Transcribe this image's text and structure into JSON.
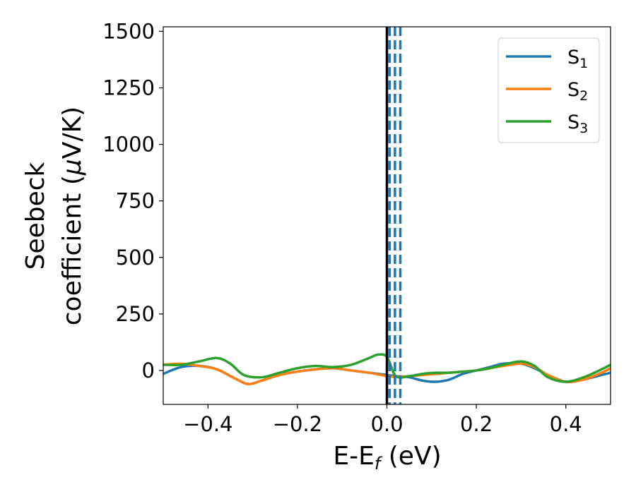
{
  "chart_data": {
    "type": "line",
    "title": "",
    "xlabel": {
      "main": "E-E",
      "sub": "f",
      "tail": " (eV)"
    },
    "ylabel": {
      "line1": "Seebeck",
      "line2a": "coefficient  (",
      "mu": "μ",
      "line2b": "V/K)"
    },
    "xlim": [
      -0.5,
      0.5
    ],
    "ylim": [
      -150,
      1520
    ],
    "xticks": [
      -0.4,
      -0.2,
      0.0,
      0.2,
      0.4
    ],
    "xtick_labels": [
      "−0.4",
      "−0.2",
      "0.0",
      "0.2",
      "0.4"
    ],
    "yticks": [
      0,
      250,
      500,
      750,
      1000,
      1250,
      1500
    ],
    "ytick_labels": [
      "0",
      "250",
      "500",
      "750",
      "1000",
      "1250",
      "1500"
    ],
    "grid": false,
    "legend_position": "top-right",
    "fermi_level_line": {
      "x": 0.0,
      "color": "#000000",
      "style": "solid"
    },
    "dashed_lines": {
      "x": [
        0.006,
        0.018,
        0.03
      ],
      "color": "#1f77b4",
      "style": "dashed"
    },
    "series": [
      {
        "name": "S",
        "sub": "1",
        "color": "#1f77b4",
        "x": [
          -0.5,
          -0.46,
          -0.42,
          -0.38,
          -0.34,
          -0.31,
          -0.28,
          -0.24,
          -0.2,
          -0.16,
          -0.12,
          -0.08,
          -0.04,
          0.0,
          0.02,
          0.05,
          0.08,
          0.11,
          0.14,
          0.17,
          0.2,
          0.23,
          0.26,
          0.3,
          0.33,
          0.36,
          0.4,
          0.44,
          0.48,
          0.5
        ],
        "y": [
          -15,
          15,
          20,
          5,
          -35,
          -60,
          -45,
          -20,
          -5,
          5,
          10,
          0,
          -10,
          -20,
          -25,
          -30,
          -45,
          -50,
          -40,
          -15,
          0,
          15,
          30,
          30,
          10,
          -20,
          -50,
          -40,
          -20,
          -10
        ]
      },
      {
        "name": "S",
        "sub": "2",
        "color": "#ff7f0e",
        "x": [
          -0.5,
          -0.46,
          -0.42,
          -0.38,
          -0.34,
          -0.31,
          -0.28,
          -0.24,
          -0.2,
          -0.16,
          -0.12,
          -0.08,
          -0.04,
          0.0,
          0.02,
          0.05,
          0.08,
          0.11,
          0.14,
          0.17,
          0.2,
          0.23,
          0.26,
          0.3,
          0.33,
          0.36,
          0.4,
          0.44,
          0.48,
          0.5
        ],
        "y": [
          25,
          30,
          20,
          5,
          -35,
          -60,
          -45,
          -20,
          -5,
          5,
          10,
          0,
          -10,
          -25,
          -28,
          -25,
          -20,
          -15,
          -10,
          -5,
          0,
          10,
          20,
          30,
          15,
          -20,
          -50,
          -40,
          -10,
          10
        ]
      },
      {
        "name": "S",
        "sub": "3",
        "color": "#2ca02c",
        "x": [
          -0.5,
          -0.46,
          -0.42,
          -0.38,
          -0.35,
          -0.32,
          -0.28,
          -0.24,
          -0.2,
          -0.16,
          -0.12,
          -0.08,
          -0.04,
          -0.02,
          0.0,
          0.02,
          0.05,
          0.08,
          0.11,
          0.14,
          0.17,
          0.2,
          0.23,
          0.26,
          0.3,
          0.33,
          0.36,
          0.4,
          0.44,
          0.48,
          0.5
        ],
        "y": [
          25,
          25,
          40,
          55,
          30,
          -20,
          -30,
          -10,
          10,
          20,
          15,
          25,
          55,
          70,
          60,
          -25,
          -25,
          -15,
          -10,
          -10,
          -5,
          0,
          10,
          25,
          40,
          20,
          -30,
          -50,
          -30,
          5,
          25
        ]
      }
    ]
  }
}
